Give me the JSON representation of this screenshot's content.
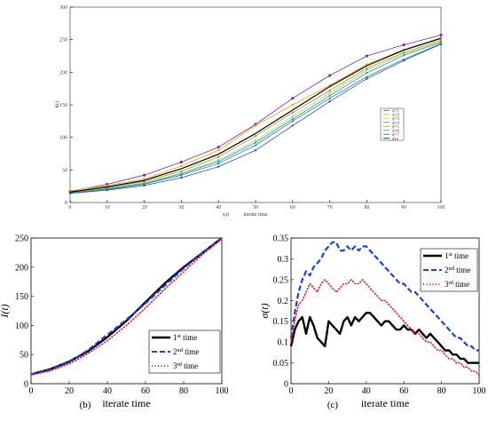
{
  "chart_data": [
    {
      "type": "line",
      "panel_label": "(a)",
      "xlabel": "iterate time",
      "ylabel": "I(t)",
      "xlim": [
        0,
        100
      ],
      "ylim": [
        0,
        300
      ],
      "x_ticks": [
        "0",
        "10",
        "20",
        "30",
        "40",
        "50",
        "60",
        "70",
        "80",
        "90",
        "100"
      ],
      "y_ticks": [
        "0",
        "50",
        "100",
        "150",
        "200",
        "250",
        "300"
      ],
      "x": [
        0,
        10,
        20,
        30,
        40,
        50,
        60,
        70,
        80,
        90,
        100
      ],
      "legend_position": "right",
      "series": [
        {
          "name": "q=1",
          "color": "#7030a0",
          "marker": "star",
          "values": [
            17,
            28,
            42,
            62,
            85,
            120,
            160,
            195,
            225,
            242,
            257
          ]
        },
        {
          "name": "q=2",
          "color": "#f4a000",
          "marker": "circle",
          "values": [
            18,
            26,
            36,
            56,
            80,
            118,
            150,
            180,
            212,
            235,
            253
          ]
        },
        {
          "name": "q=3",
          "color": "#a8d07a",
          "marker": "circle",
          "values": [
            16,
            22,
            30,
            45,
            65,
            95,
            132,
            168,
            203,
            228,
            247
          ]
        },
        {
          "name": "q=4",
          "color": "#1e7fd0",
          "marker": "triangle",
          "values": [
            15,
            20,
            28,
            42,
            60,
            88,
            125,
            160,
            193,
            220,
            244
          ]
        },
        {
          "name": "q=5",
          "color": "#9a9a30",
          "marker": "circle",
          "values": [
            16,
            23,
            32,
            48,
            70,
            102,
            138,
            172,
            206,
            230,
            249
          ]
        },
        {
          "name": "q=6",
          "color": "#2aa198",
          "marker": "circle",
          "values": [
            15,
            21,
            29,
            44,
            63,
            92,
            128,
            164,
            199,
            226,
            246
          ]
        },
        {
          "name": "q=7",
          "color": "#4a4a8a",
          "marker": "circle",
          "values": [
            14,
            19,
            26,
            38,
            55,
            80,
            118,
            155,
            190,
            218,
            243
          ]
        },
        {
          "name": "ave",
          "color": "#000000",
          "marker": "none",
          "values": [
            16,
            24,
            34,
            52,
            74,
            106,
            142,
            178,
            210,
            234,
            252
          ]
        }
      ]
    },
    {
      "type": "line",
      "panel_label": "(b)",
      "xlabel": "iterate time",
      "ylabel": "I(t)",
      "xlim": [
        0,
        100
      ],
      "ylim": [
        0,
        250
      ],
      "x_ticks": [
        "0",
        "20",
        "40",
        "60",
        "80",
        "100"
      ],
      "y_ticks": [
        "0",
        "50",
        "100",
        "150",
        "200",
        "250"
      ],
      "x": [
        0,
        10,
        20,
        30,
        40,
        50,
        60,
        70,
        80,
        90,
        100
      ],
      "legend_position": "lower right",
      "series": [
        {
          "name": "1st time",
          "label_base": "1",
          "label_sup": "st",
          "label_tail": " time",
          "color": "#000000",
          "style": "solid",
          "values": [
            16,
            25,
            38,
            56,
            80,
            108,
            140,
            172,
            200,
            225,
            250
          ]
        },
        {
          "name": "2nd time",
          "label_base": "2",
          "label_sup": "nd",
          "label_tail": " time",
          "color": "#1f3fd6",
          "style": "dash",
          "values": [
            16,
            24,
            37,
            58,
            84,
            110,
            138,
            168,
            198,
            225,
            250
          ]
        },
        {
          "name": "3rd time",
          "label_base": "3",
          "label_sup": "rd",
          "label_tail": " time",
          "color": "#e02020",
          "style": "dot",
          "values": [
            15,
            22,
            34,
            52,
            74,
            100,
            130,
            162,
            192,
            222,
            248
          ]
        }
      ]
    },
    {
      "type": "line",
      "panel_label": "(c)",
      "xlabel": "iterate time",
      "ylabel": "σ(t)",
      "xlim": [
        0,
        100
      ],
      "ylim": [
        0,
        0.35
      ],
      "x_ticks": [
        "0",
        "20",
        "40",
        "60",
        "80",
        "100"
      ],
      "y_ticks": [
        "0",
        "0.05",
        "0.1",
        "0.15",
        "0.2",
        "0.25",
        "0.3",
        "0.35"
      ],
      "legend_position": "top right",
      "series": [
        {
          "name": "1st time",
          "label_base": "1",
          "label_sup": "st",
          "label_tail": " time",
          "color": "#000000",
          "style": "solid",
          "x": [
            0,
            2,
            4,
            6,
            8,
            10,
            12,
            14,
            16,
            18,
            20,
            22,
            24,
            26,
            28,
            30,
            32,
            34,
            36,
            38,
            40,
            42,
            44,
            46,
            48,
            50,
            52,
            54,
            56,
            58,
            60,
            62,
            64,
            66,
            68,
            70,
            72,
            74,
            76,
            78,
            80,
            82,
            84,
            86,
            88,
            90,
            92,
            94,
            96,
            98,
            100
          ],
          "values": [
            0.09,
            0.13,
            0.15,
            0.16,
            0.12,
            0.16,
            0.14,
            0.11,
            0.1,
            0.09,
            0.15,
            0.14,
            0.13,
            0.12,
            0.15,
            0.16,
            0.14,
            0.16,
            0.15,
            0.16,
            0.17,
            0.17,
            0.16,
            0.15,
            0.14,
            0.15,
            0.15,
            0.14,
            0.13,
            0.13,
            0.14,
            0.13,
            0.13,
            0.12,
            0.13,
            0.12,
            0.11,
            0.12,
            0.11,
            0.1,
            0.09,
            0.08,
            0.08,
            0.07,
            0.07,
            0.06,
            0.06,
            0.05,
            0.05,
            0.05,
            0.05
          ]
        },
        {
          "name": "2nd time",
          "label_base": "2",
          "label_sup": "nd",
          "label_tail": " time",
          "color": "#1f3fd6",
          "style": "dash",
          "x": [
            0,
            2,
            4,
            6,
            8,
            10,
            12,
            14,
            16,
            18,
            20,
            22,
            24,
            26,
            28,
            30,
            32,
            34,
            36,
            38,
            40,
            42,
            44,
            46,
            48,
            50,
            52,
            54,
            56,
            58,
            60,
            62,
            64,
            66,
            68,
            70,
            72,
            74,
            76,
            78,
            80,
            82,
            84,
            86,
            88,
            90,
            92,
            94,
            96,
            98,
            100
          ],
          "values": [
            0.11,
            0.17,
            0.22,
            0.25,
            0.27,
            0.26,
            0.28,
            0.29,
            0.3,
            0.32,
            0.33,
            0.34,
            0.34,
            0.32,
            0.32,
            0.33,
            0.32,
            0.33,
            0.32,
            0.33,
            0.33,
            0.32,
            0.31,
            0.3,
            0.29,
            0.28,
            0.27,
            0.26,
            0.25,
            0.24,
            0.24,
            0.23,
            0.22,
            0.22,
            0.21,
            0.2,
            0.19,
            0.18,
            0.17,
            0.16,
            0.15,
            0.14,
            0.13,
            0.12,
            0.11,
            0.11,
            0.1,
            0.09,
            0.09,
            0.08,
            0.08
          ]
        },
        {
          "name": "3rd time",
          "label_base": "3",
          "label_sup": "rd",
          "label_tail": " time",
          "color": "#e02020",
          "style": "dot",
          "x": [
            0,
            2,
            4,
            6,
            8,
            10,
            12,
            14,
            16,
            18,
            20,
            22,
            24,
            26,
            28,
            30,
            32,
            34,
            36,
            38,
            40,
            42,
            44,
            46,
            48,
            50,
            52,
            54,
            56,
            58,
            60,
            62,
            64,
            66,
            68,
            70,
            72,
            74,
            76,
            78,
            80,
            82,
            84,
            86,
            88,
            90,
            92,
            94,
            96,
            98,
            100
          ],
          "values": [
            0.1,
            0.15,
            0.19,
            0.2,
            0.22,
            0.24,
            0.23,
            0.22,
            0.24,
            0.25,
            0.24,
            0.23,
            0.22,
            0.23,
            0.24,
            0.24,
            0.25,
            0.24,
            0.24,
            0.25,
            0.24,
            0.23,
            0.22,
            0.21,
            0.2,
            0.2,
            0.19,
            0.18,
            0.17,
            0.16,
            0.15,
            0.14,
            0.13,
            0.12,
            0.12,
            0.11,
            0.1,
            0.1,
            0.09,
            0.08,
            0.08,
            0.07,
            0.06,
            0.06,
            0.05,
            0.05,
            0.04,
            0.04,
            0.03,
            0.03,
            0.02
          ]
        }
      ]
    }
  ]
}
